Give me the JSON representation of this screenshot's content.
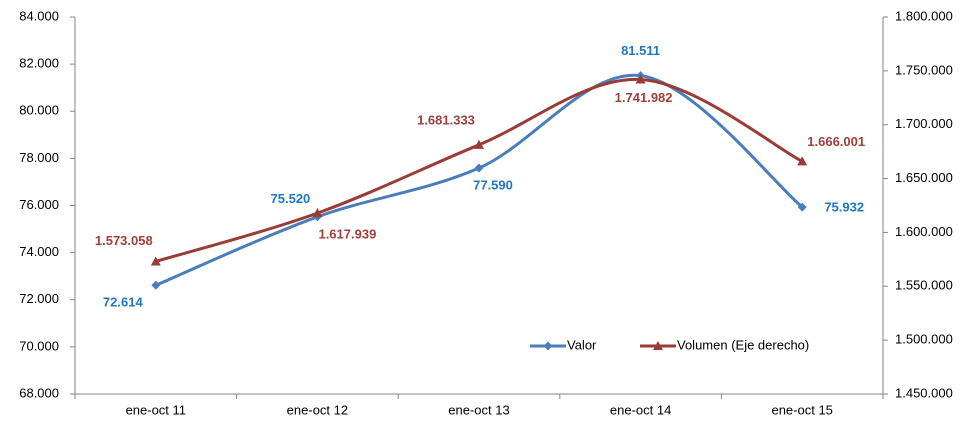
{
  "chart_data": {
    "type": "line",
    "categories": [
      "ene-oct 11",
      "ene-oct 12",
      "ene-oct 13",
      "ene-oct 14",
      "ene-oct 15"
    ],
    "series": [
      {
        "name": "Valor",
        "color": "#4a7ebb",
        "label_color": "#1f78c1",
        "marker": "diamond",
        "values": [
          72614,
          75520,
          77590,
          81511,
          75932
        ],
        "value_labels": [
          "72.614",
          "75.520",
          "77.590",
          "81.511",
          "75.932"
        ]
      },
      {
        "name": "Volumen (Eje derecho)",
        "color": "#9b3b38",
        "label_color": "#a0403c",
        "marker": "triangle",
        "axis": "y2",
        "values": [
          1573058,
          1617939,
          1681333,
          1741982,
          1666001
        ],
        "value_labels": [
          "1.573.058",
          "1.617.939",
          "1.681.333",
          "1.741.982",
          "1.666.001"
        ]
      }
    ],
    "ylim": [
      68000,
      84000
    ],
    "yticks": [
      {
        "value": 68000,
        "label": "68.000"
      },
      {
        "value": 70000,
        "label": "70.000"
      },
      {
        "value": 72000,
        "label": "72.000"
      },
      {
        "value": 74000,
        "label": "74.000"
      },
      {
        "value": 76000,
        "label": "76.000"
      },
      {
        "value": 78000,
        "label": "78.000"
      },
      {
        "value": 80000,
        "label": "80.000"
      },
      {
        "value": 82000,
        "label": "82.000"
      },
      {
        "value": 84000,
        "label": "84.000"
      }
    ],
    "y2lim": [
      1450000,
      1800000
    ],
    "y2ticks": [
      {
        "value": 1450000,
        "label": "1.450.000"
      },
      {
        "value": 1500000,
        "label": "1.500.000"
      },
      {
        "value": 1550000,
        "label": "1.550.000"
      },
      {
        "value": 1600000,
        "label": "1.600.000"
      },
      {
        "value": 1650000,
        "label": "1.650.000"
      },
      {
        "value": 1700000,
        "label": "1.700.000"
      },
      {
        "value": 1750000,
        "label": "1.750.000"
      },
      {
        "value": 1800000,
        "label": "1.800.000"
      }
    ],
    "smooth": true,
    "grid": false,
    "legend": "bottom-right"
  }
}
